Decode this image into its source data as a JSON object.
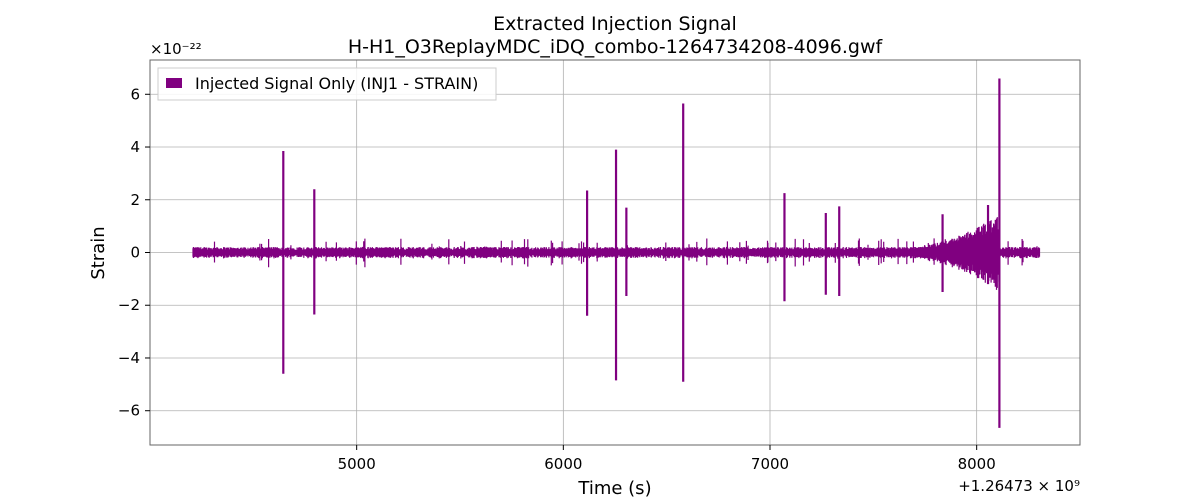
{
  "chart_data": {
    "type": "line",
    "title_line1": "Extracted Injection Signal",
    "title_line2": "H-H1_O3ReplayMDC_iDQ_combo-1264734208-4096.gwf",
    "xlabel": "Time (s)",
    "ylabel": "Strain",
    "x_offset_label": "+1.26473 × 10⁹",
    "y_scale_label": "×10⁻²²",
    "xlim": [
      4000,
      8500
    ],
    "ylim": [
      -7.3,
      7.3
    ],
    "x_ticks": [
      5000,
      6000,
      7000,
      8000
    ],
    "x_tick_labels": [
      "5000",
      "6000",
      "7000",
      "8000"
    ],
    "y_ticks": [
      -6,
      -4,
      -2,
      0,
      2,
      4,
      6
    ],
    "y_tick_labels": [
      "−6",
      "−4",
      "−2",
      "0",
      "2",
      "4",
      "6"
    ],
    "grid": true,
    "legend": "top-left",
    "color": "#800080",
    "series": [
      {
        "name": "Injected Signal Only (INJ1 - STRAIN)",
        "x_range": [
          4208,
          8304
        ],
        "baseline_amplitude": 0.15,
        "spikes": [
          {
            "x": 4645,
            "ymax": 3.85,
            "ymin": -4.6
          },
          {
            "x": 4795,
            "ymax": 2.4,
            "ymin": -2.35
          },
          {
            "x": 6115,
            "ymax": 2.35,
            "ymin": -2.4
          },
          {
            "x": 6255,
            "ymax": 3.9,
            "ymin": -4.85
          },
          {
            "x": 6305,
            "ymax": 1.7,
            "ymin": -1.65
          },
          {
            "x": 6580,
            "ymax": 5.65,
            "ymin": -4.9
          },
          {
            "x": 7070,
            "ymax": 2.25,
            "ymin": -1.85
          },
          {
            "x": 7270,
            "ymax": 1.5,
            "ymin": -1.6
          },
          {
            "x": 7335,
            "ymax": 1.75,
            "ymin": -1.65
          },
          {
            "x": 7835,
            "ymax": 1.45,
            "ymin": -1.5
          },
          {
            "x": 8055,
            "ymax": 1.8,
            "ymin": -1.2
          },
          {
            "x": 8110,
            "ymax": 6.6,
            "ymin": -6.65
          }
        ]
      }
    ]
  }
}
